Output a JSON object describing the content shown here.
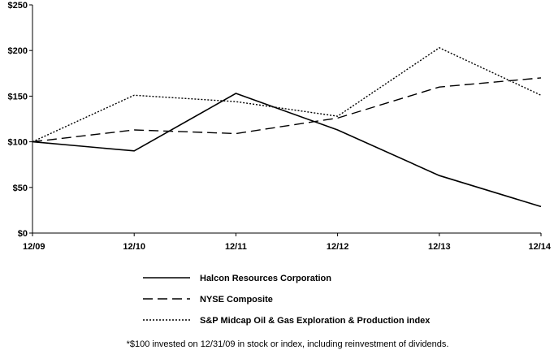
{
  "chart_data": {
    "type": "line",
    "title": "",
    "xlabel": "",
    "ylabel": "",
    "categories": [
      "12/09",
      "12/10",
      "12/11",
      "12/12",
      "12/13",
      "12/14"
    ],
    "y_ticks": [
      "$0",
      "$50",
      "$100",
      "$150",
      "$200",
      "$250"
    ],
    "ylim": [
      0,
      250
    ],
    "grid": false,
    "legend_position": "bottom",
    "series": [
      {
        "name": "Halcon Resources Corporation",
        "style": "solid",
        "color": "#000000",
        "values": [
          100,
          90,
          153,
          113,
          63,
          29
        ]
      },
      {
        "name": "NYSE Composite",
        "style": "dashed",
        "color": "#000000",
        "values": [
          100,
          113,
          109,
          126,
          160,
          170
        ]
      },
      {
        "name": "S&P Midcap Oil & Gas Exploration & Production index",
        "style": "dotted",
        "color": "#000000",
        "values": [
          100,
          151,
          144,
          128,
          203,
          151
        ]
      }
    ],
    "footnote": "*$100 invested on 12/31/09 in stock or index, including reinvestment of dividends."
  }
}
